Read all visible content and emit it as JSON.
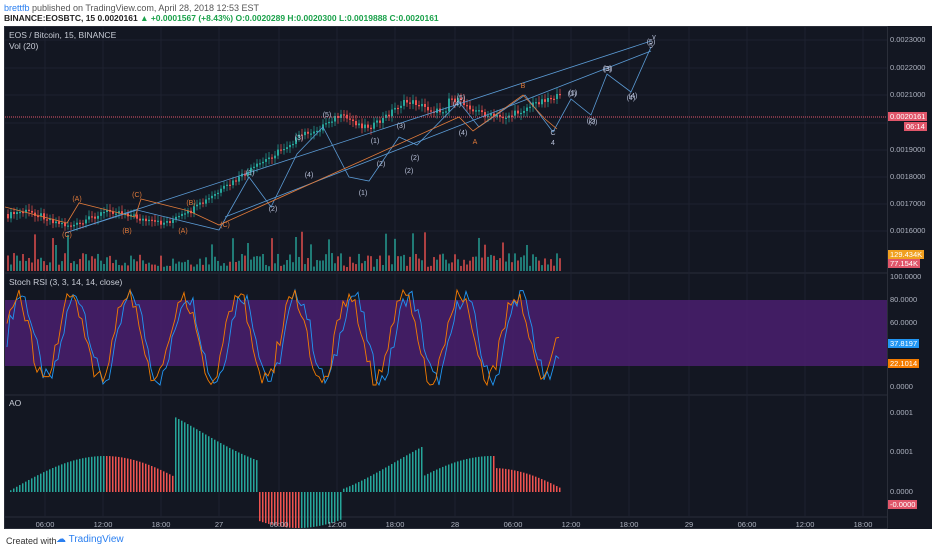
{
  "header": {
    "user": "brettfb",
    "published": " published on TradingView.com, April 28, 2018 12:53 EST",
    "symbol_line_prefix": "BINANCE:EOSBTC, 15  0.0020161 ",
    "change": "▲ +0.0001567 (+8.43%)",
    "ohlc": "O:0.0020289 H:0.0020300 L:0.0019888 C:0.0020161"
  },
  "main_pane": {
    "title": "EOS / Bitcoin, 15, BINANCE",
    "indicator": "Vol (20)",
    "price_ticks": [
      "0.0023000",
      "0.0022000",
      "0.0021000",
      "0.0020000",
      "0.0019000",
      "0.0018000",
      "0.0017000",
      "0.0016000"
    ],
    "last_price": "0.0020161",
    "countdown": "06:14",
    "vol_badge_1": "129.434K",
    "vol_badge_2": "77.154K",
    "wave_labels": [
      "(C)",
      "(A)",
      "(C)",
      "(B)",
      "(A)",
      "(B)",
      "(C)",
      "(1)",
      "(2)",
      "(3)",
      "(4)",
      "(5)",
      "(1)",
      "(2)",
      "(1)",
      "(2)",
      "(3)",
      "(4)",
      "(5)",
      "(2)",
      "(4)",
      "(1)",
      "(2)",
      "(3)",
      "(4)",
      "(5)",
      "B",
      "A",
      "C",
      "4",
      "(1)",
      "(2)",
      "(3)",
      "(4)",
      "5",
      "v"
    ]
  },
  "stoch_pane": {
    "title": "Stoch RSI (3, 3, 14, 14, close)",
    "ticks": [
      "100.0000",
      "80.0000",
      "60.0000",
      "0.0000"
    ],
    "badge_k": "37.8197",
    "badge_d": "22.1014"
  },
  "ao_pane": {
    "title": "AO",
    "ticks": [
      "0.0001",
      "0.0001",
      "0.0000"
    ],
    "badge": "-0.0000"
  },
  "time_axis": [
    "06:00",
    "12:00",
    "18:00",
    "27",
    "06:00",
    "12:00",
    "18:00",
    "28",
    "06:00",
    "12:00",
    "18:00",
    "29",
    "06:00",
    "12:00",
    "18:00"
  ],
  "colors": {
    "up": "#26a69a",
    "down": "#ef5350",
    "bg": "#131722",
    "stoch_band": "#4a1f6e",
    "wave_blue": "#5b9bd5",
    "wave_orange": "#e07a3a"
  },
  "footer": {
    "created_with": "Created with",
    "brand": "TradingView"
  }
}
